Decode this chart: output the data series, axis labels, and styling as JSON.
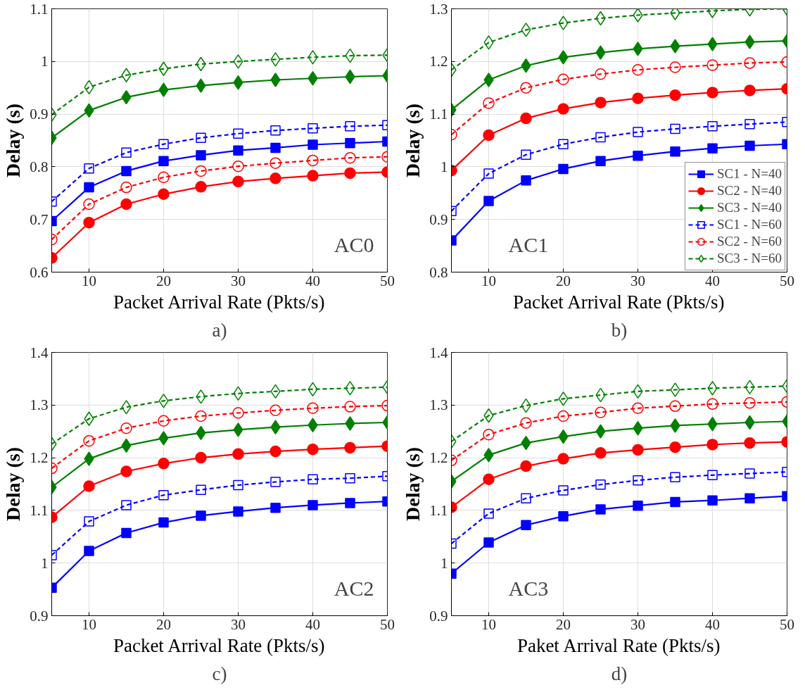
{
  "chart_data": [
    {
      "type": "line",
      "title": "a)",
      "xlabel": "Packet Arrival Rate (Pkts/s)",
      "ylabel": "Delay (s)",
      "annotations": [
        "AC0"
      ],
      "x": [
        5,
        10,
        15,
        20,
        25,
        30,
        35,
        40,
        45,
        50
      ],
      "xlim": [
        5,
        50
      ],
      "xticks": [
        10,
        20,
        30,
        40,
        50
      ],
      "ylim": [
        0.6,
        1.1
      ],
      "yticks": [
        0.6,
        0.7,
        0.8,
        0.9,
        1,
        1.1
      ],
      "grid": true,
      "legend": false,
      "series": [
        {
          "color": "#0000ff",
          "marker": "square",
          "line_style": "solid",
          "values": [
            0.697,
            0.761,
            0.792,
            0.811,
            0.822,
            0.831,
            0.836,
            0.842,
            0.845,
            0.848
          ]
        },
        {
          "color": "#ff0000",
          "marker": "circle",
          "line_style": "solid",
          "values": [
            0.627,
            0.694,
            0.729,
            0.748,
            0.762,
            0.772,
            0.778,
            0.783,
            0.788,
            0.79
          ]
        },
        {
          "color": "#008000",
          "marker": "diamond",
          "line_style": "solid",
          "values": [
            0.855,
            0.907,
            0.932,
            0.946,
            0.954,
            0.96,
            0.965,
            0.968,
            0.971,
            0.973
          ]
        },
        {
          "color": "#0000ff",
          "marker": "square",
          "line_style": "dashed",
          "values": [
            0.734,
            0.797,
            0.827,
            0.843,
            0.855,
            0.863,
            0.869,
            0.873,
            0.877,
            0.879
          ]
        },
        {
          "color": "#ff0000",
          "marker": "circle",
          "line_style": "dashed",
          "values": [
            0.662,
            0.729,
            0.761,
            0.78,
            0.792,
            0.801,
            0.807,
            0.812,
            0.817,
            0.819
          ]
        },
        {
          "color": "#008000",
          "marker": "diamond",
          "line_style": "dashed",
          "values": [
            0.899,
            0.951,
            0.974,
            0.986,
            0.995,
            1.0,
            1.004,
            1.008,
            1.011,
            1.012
          ]
        }
      ]
    },
    {
      "type": "line",
      "title": "b)",
      "xlabel": "Packet Arrival Rate (Pkts/s)",
      "ylabel": "Delay (s)",
      "annotations": [
        "AC1"
      ],
      "x": [
        5,
        10,
        15,
        20,
        25,
        30,
        35,
        40,
        45,
        50
      ],
      "xlim": [
        5,
        50
      ],
      "xticks": [
        10,
        20,
        30,
        40,
        50
      ],
      "ylim": [
        0.8,
        1.3
      ],
      "yticks": [
        0.8,
        0.9,
        1,
        1.1,
        1.2,
        1.3
      ],
      "grid": true,
      "legend": "bottom right",
      "series": [
        {
          "name": "SC1 - N=40",
          "color": "#0000ff",
          "marker": "square",
          "line_style": "solid",
          "values": [
            0.86,
            0.935,
            0.974,
            0.996,
            1.011,
            1.021,
            1.029,
            1.035,
            1.04,
            1.043
          ]
        },
        {
          "name": "SC2 - N=40",
          "color": "#ff0000",
          "marker": "circle",
          "line_style": "solid",
          "values": [
            0.993,
            1.06,
            1.092,
            1.11,
            1.122,
            1.13,
            1.136,
            1.141,
            1.145,
            1.148
          ]
        },
        {
          "name": "SC3 - N=40",
          "color": "#008000",
          "marker": "diamond",
          "line_style": "solid",
          "values": [
            1.108,
            1.165,
            1.192,
            1.208,
            1.217,
            1.224,
            1.229,
            1.233,
            1.237,
            1.239
          ]
        },
        {
          "name": "SC1 - N=60",
          "color": "#0000ff",
          "marker": "square",
          "line_style": "dashed",
          "values": [
            0.916,
            0.987,
            1.023,
            1.043,
            1.056,
            1.066,
            1.072,
            1.077,
            1.081,
            1.085
          ]
        },
        {
          "name": "SC2 - N=60",
          "color": "#ff0000",
          "marker": "circle",
          "line_style": "dashed",
          "values": [
            1.061,
            1.121,
            1.15,
            1.166,
            1.176,
            1.184,
            1.189,
            1.193,
            1.197,
            1.199
          ]
        },
        {
          "name": "SC3 - N=60",
          "color": "#008000",
          "marker": "diamond",
          "line_style": "dashed",
          "values": [
            1.184,
            1.236,
            1.26,
            1.273,
            1.282,
            1.288,
            1.292,
            1.296,
            1.299,
            1.3
          ]
        }
      ]
    },
    {
      "type": "line",
      "title": "c)",
      "xlabel": "Packet Arrival Rate (Pkts/s)",
      "ylabel": "Delay (s)",
      "annotations": [
        "AC2"
      ],
      "x": [
        5,
        10,
        15,
        20,
        25,
        30,
        35,
        40,
        45,
        50
      ],
      "xlim": [
        5,
        50
      ],
      "xticks": [
        10,
        20,
        30,
        40,
        50
      ],
      "ylim": [
        0.9,
        1.4
      ],
      "yticks": [
        0.9,
        1,
        1.1,
        1.2,
        1.3,
        1.4
      ],
      "grid": true,
      "legend": false,
      "series": [
        {
          "color": "#0000ff",
          "marker": "square",
          "line_style": "solid",
          "values": [
            0.953,
            1.023,
            1.057,
            1.077,
            1.09,
            1.098,
            1.105,
            1.11,
            1.114,
            1.117
          ]
        },
        {
          "color": "#ff0000",
          "marker": "circle",
          "line_style": "solid",
          "values": [
            1.087,
            1.146,
            1.174,
            1.189,
            1.2,
            1.207,
            1.212,
            1.216,
            1.219,
            1.222
          ]
        },
        {
          "color": "#008000",
          "marker": "diamond",
          "line_style": "solid",
          "values": [
            1.144,
            1.198,
            1.223,
            1.237,
            1.247,
            1.253,
            1.258,
            1.262,
            1.265,
            1.267
          ]
        },
        {
          "color": "#0000ff",
          "marker": "square",
          "line_style": "dashed",
          "values": [
            1.015,
            1.079,
            1.11,
            1.129,
            1.139,
            1.148,
            1.154,
            1.159,
            1.161,
            1.165
          ]
        },
        {
          "color": "#ff0000",
          "marker": "circle",
          "line_style": "dashed",
          "values": [
            1.18,
            1.232,
            1.256,
            1.27,
            1.279,
            1.285,
            1.29,
            1.294,
            1.297,
            1.299
          ]
        },
        {
          "color": "#008000",
          "marker": "diamond",
          "line_style": "dashed",
          "values": [
            1.226,
            1.274,
            1.296,
            1.308,
            1.316,
            1.322,
            1.326,
            1.33,
            1.332,
            1.334
          ]
        }
      ]
    },
    {
      "type": "line",
      "title": "d)",
      "xlabel": "Paket Arrival Rate (Pkts/s)",
      "ylabel": "Delay (s)",
      "annotations": [
        "AC3"
      ],
      "x": [
        5,
        10,
        15,
        20,
        25,
        30,
        35,
        40,
        45,
        50
      ],
      "xlim": [
        5,
        50
      ],
      "xticks": [
        10,
        20,
        30,
        40,
        50
      ],
      "ylim": [
        0.9,
        1.4
      ],
      "yticks": [
        0.9,
        1,
        1.1,
        1.2,
        1.3,
        1.4
      ],
      "grid": true,
      "legend": false,
      "series": [
        {
          "color": "#0000ff",
          "marker": "square",
          "line_style": "solid",
          "values": [
            0.98,
            1.039,
            1.072,
            1.089,
            1.102,
            1.109,
            1.116,
            1.119,
            1.123,
            1.127
          ]
        },
        {
          "color": "#ff0000",
          "marker": "circle",
          "line_style": "solid",
          "values": [
            1.106,
            1.159,
            1.184,
            1.198,
            1.209,
            1.215,
            1.22,
            1.225,
            1.228,
            1.23
          ]
        },
        {
          "color": "#008000",
          "marker": "diamond",
          "line_style": "solid",
          "values": [
            1.155,
            1.205,
            1.228,
            1.24,
            1.25,
            1.256,
            1.261,
            1.264,
            1.267,
            1.269
          ]
        },
        {
          "color": "#0000ff",
          "marker": "square",
          "line_style": "dashed",
          "values": [
            1.037,
            1.094,
            1.123,
            1.138,
            1.149,
            1.157,
            1.163,
            1.167,
            1.17,
            1.173
          ]
        },
        {
          "color": "#ff0000",
          "marker": "circle",
          "line_style": "dashed",
          "values": [
            1.195,
            1.244,
            1.266,
            1.279,
            1.286,
            1.294,
            1.298,
            1.302,
            1.304,
            1.306
          ]
        },
        {
          "color": "#008000",
          "marker": "diamond",
          "line_style": "dashed",
          "values": [
            1.231,
            1.28,
            1.299,
            1.312,
            1.319,
            1.326,
            1.329,
            1.332,
            1.334,
            1.336
          ]
        }
      ]
    }
  ]
}
